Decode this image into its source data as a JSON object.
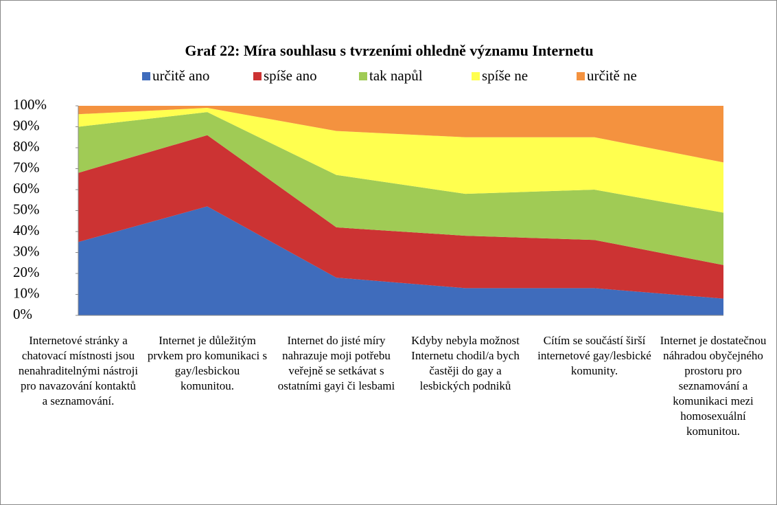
{
  "chart_data": {
    "type": "stacked_area_100",
    "title": "Graf 22: Míra souhlasu s tvrzeními ohledně významu Internetu",
    "categories": [
      "Internetové stránky a chatovací místnosti jsou nenahraditelnými nástroji pro navazování kontaktů a seznamování.",
      "Internet je důležitým prvkem pro komunikaci s gay/lesbickou komunitou.",
      "Internet do jisté míry nahrazuje moji potřebu veřejně se setkávat s ostatními gayi či lesbami",
      "Kdyby nebyla možnost Internetu chodil/a bych častěji do gay a lesbických podniků",
      "Cítím se součástí širší internetové gay/lesbické komunity.",
      "Internet je dostatečnou náhradou obyčejného prostoru pro seznamování a komunikaci mezi homosexuální komunitou."
    ],
    "series": [
      {
        "name": "určitě ano",
        "color": "#3f6cbc",
        "values": [
          35,
          52,
          18,
          13,
          13,
          8
        ]
      },
      {
        "name": "spíše ano",
        "color": "#cc3333",
        "values": [
          33,
          34,
          24,
          25,
          23,
          16
        ]
      },
      {
        "name": "tak napůl",
        "color": "#a0cb55",
        "values": [
          22,
          11,
          25,
          20,
          24,
          25
        ]
      },
      {
        "name": "spíše ne",
        "color": "#ffff4f",
        "values": [
          6,
          2,
          21,
          27,
          25,
          24
        ]
      },
      {
        "name": "určitě ne",
        "color": "#f4923f",
        "values": [
          4,
          1,
          12,
          15,
          15,
          27
        ]
      }
    ],
    "ylim": [
      0,
      100
    ],
    "yticks": [
      {
        "value": 0,
        "label": "0%"
      },
      {
        "value": 10,
        "label": "10%"
      },
      {
        "value": 20,
        "label": "20%"
      },
      {
        "value": 30,
        "label": "30%"
      },
      {
        "value": 40,
        "label": "40%"
      },
      {
        "value": 50,
        "label": "50%"
      },
      {
        "value": 60,
        "label": "60%"
      },
      {
        "value": 70,
        "label": "70%"
      },
      {
        "value": 80,
        "label": "80%"
      },
      {
        "value": 90,
        "label": "90%"
      },
      {
        "value": 100,
        "label": "100%"
      }
    ],
    "legend": "top"
  }
}
